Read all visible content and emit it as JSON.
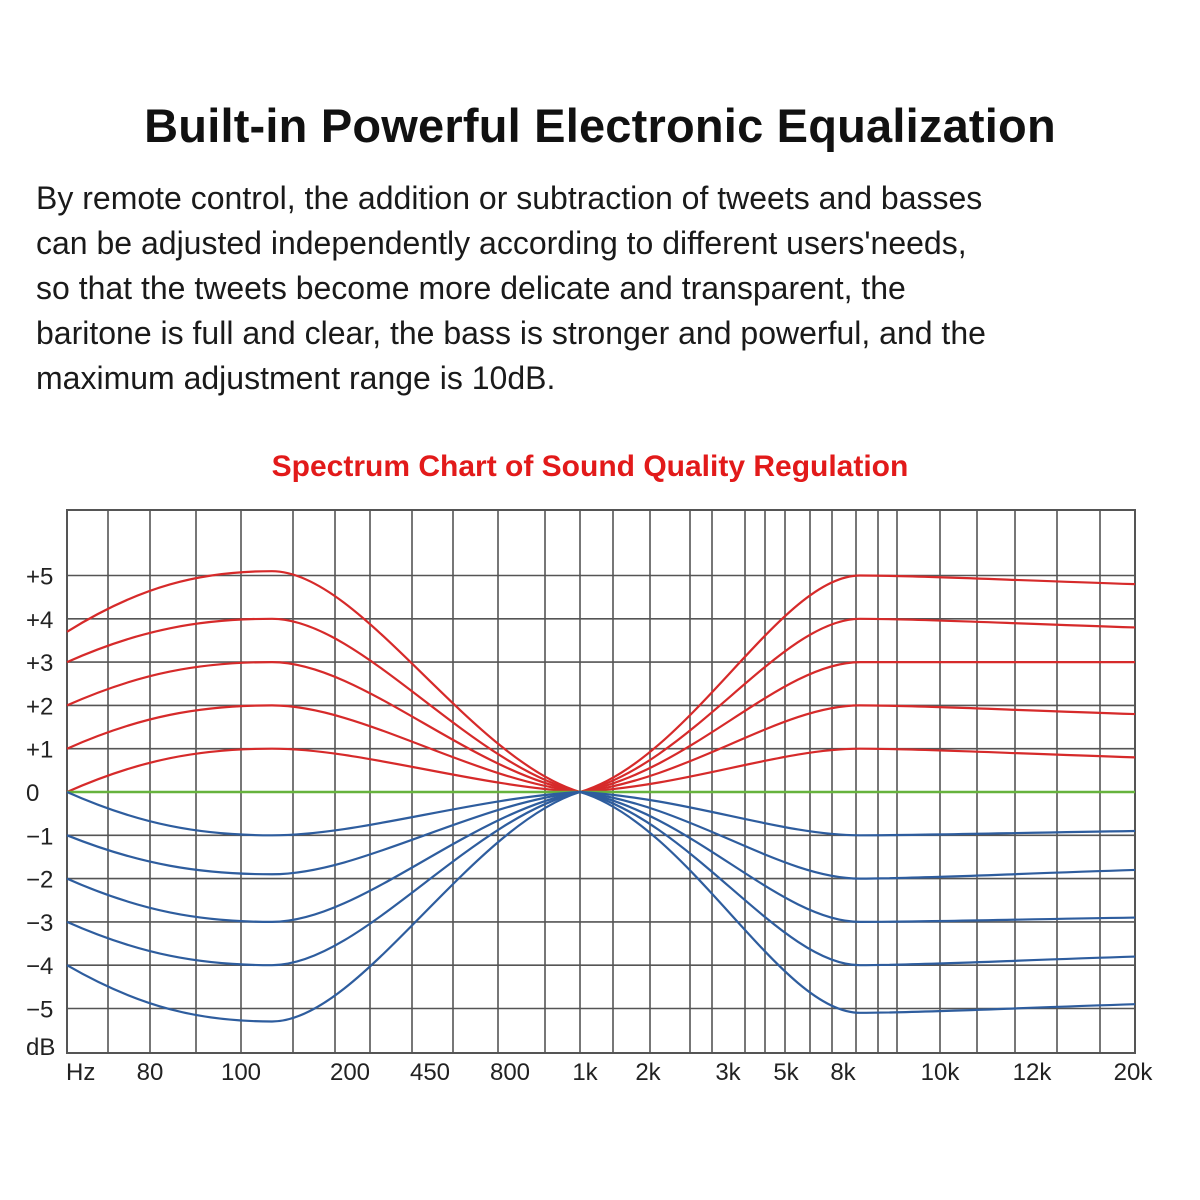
{
  "heading": "Built-in Powerful Electronic Equalization",
  "description_lines": [
    "By remote control, the addition or subtraction of tweets and basses",
    "can be adjusted independently according to different users'needs,",
    "so that the tweets become more delicate and transparent, the",
    "baritone is full and clear, the bass is stronger and powerful, and the",
    "maximum adjustment range is 10dB."
  ],
  "colors": {
    "boost": "#d62a2a",
    "cut": "#2e5d9e",
    "flat": "#66b33d",
    "grid": "#555555",
    "title": "#e21a1a"
  },
  "chart_data": {
    "type": "line",
    "title": "Spectrum Chart of Sound Quality Regulation",
    "xlabel": "Hz",
    "ylabel": "dB",
    "x_ticks": [
      "80",
      "100",
      "200",
      "450",
      "800",
      "1k",
      "2k",
      "3k",
      "5k",
      "8k",
      "10k",
      "12k",
      "20k"
    ],
    "y_ticks": [
      "+5",
      "+4",
      "+3",
      "+2",
      "+1",
      "0",
      "−1",
      "−2",
      "−3",
      "−4",
      "−5"
    ],
    "y_tick_values": [
      5,
      4,
      3,
      2,
      1,
      0,
      -1,
      -2,
      -3,
      -4,
      -5
    ],
    "ylim": [
      -6,
      6.6
    ],
    "x": [
      "Hz",
      "100",
      "1k",
      "10k",
      "20k"
    ],
    "grid": true,
    "series": [
      {
        "group": "boost",
        "values": [
          3.7,
          5.1,
          0,
          5.0,
          4.8
        ]
      },
      {
        "group": "boost",
        "values": [
          3.0,
          4.0,
          0,
          4.0,
          3.8
        ]
      },
      {
        "group": "boost",
        "values": [
          2.0,
          3.0,
          0,
          3.0,
          3.0
        ]
      },
      {
        "group": "boost",
        "values": [
          1.0,
          2.0,
          0,
          2.0,
          1.8
        ]
      },
      {
        "group": "boost",
        "values": [
          0.0,
          1.0,
          0,
          1.0,
          0.8
        ]
      },
      {
        "group": "flat",
        "values": [
          0,
          0,
          0,
          0,
          0
        ]
      },
      {
        "group": "cut",
        "values": [
          0.0,
          -1.0,
          0,
          -1.0,
          -0.9
        ]
      },
      {
        "group": "cut",
        "values": [
          -1.0,
          -1.9,
          0,
          -2.0,
          -1.8
        ]
      },
      {
        "group": "cut",
        "values": [
          -2.0,
          -3.0,
          0,
          -3.0,
          -2.9
        ]
      },
      {
        "group": "cut",
        "values": [
          -3.0,
          -4.0,
          0,
          -4.0,
          -3.8
        ]
      },
      {
        "group": "cut",
        "values": [
          -4.0,
          -5.3,
          0,
          -5.1,
          -4.9
        ]
      }
    ]
  }
}
